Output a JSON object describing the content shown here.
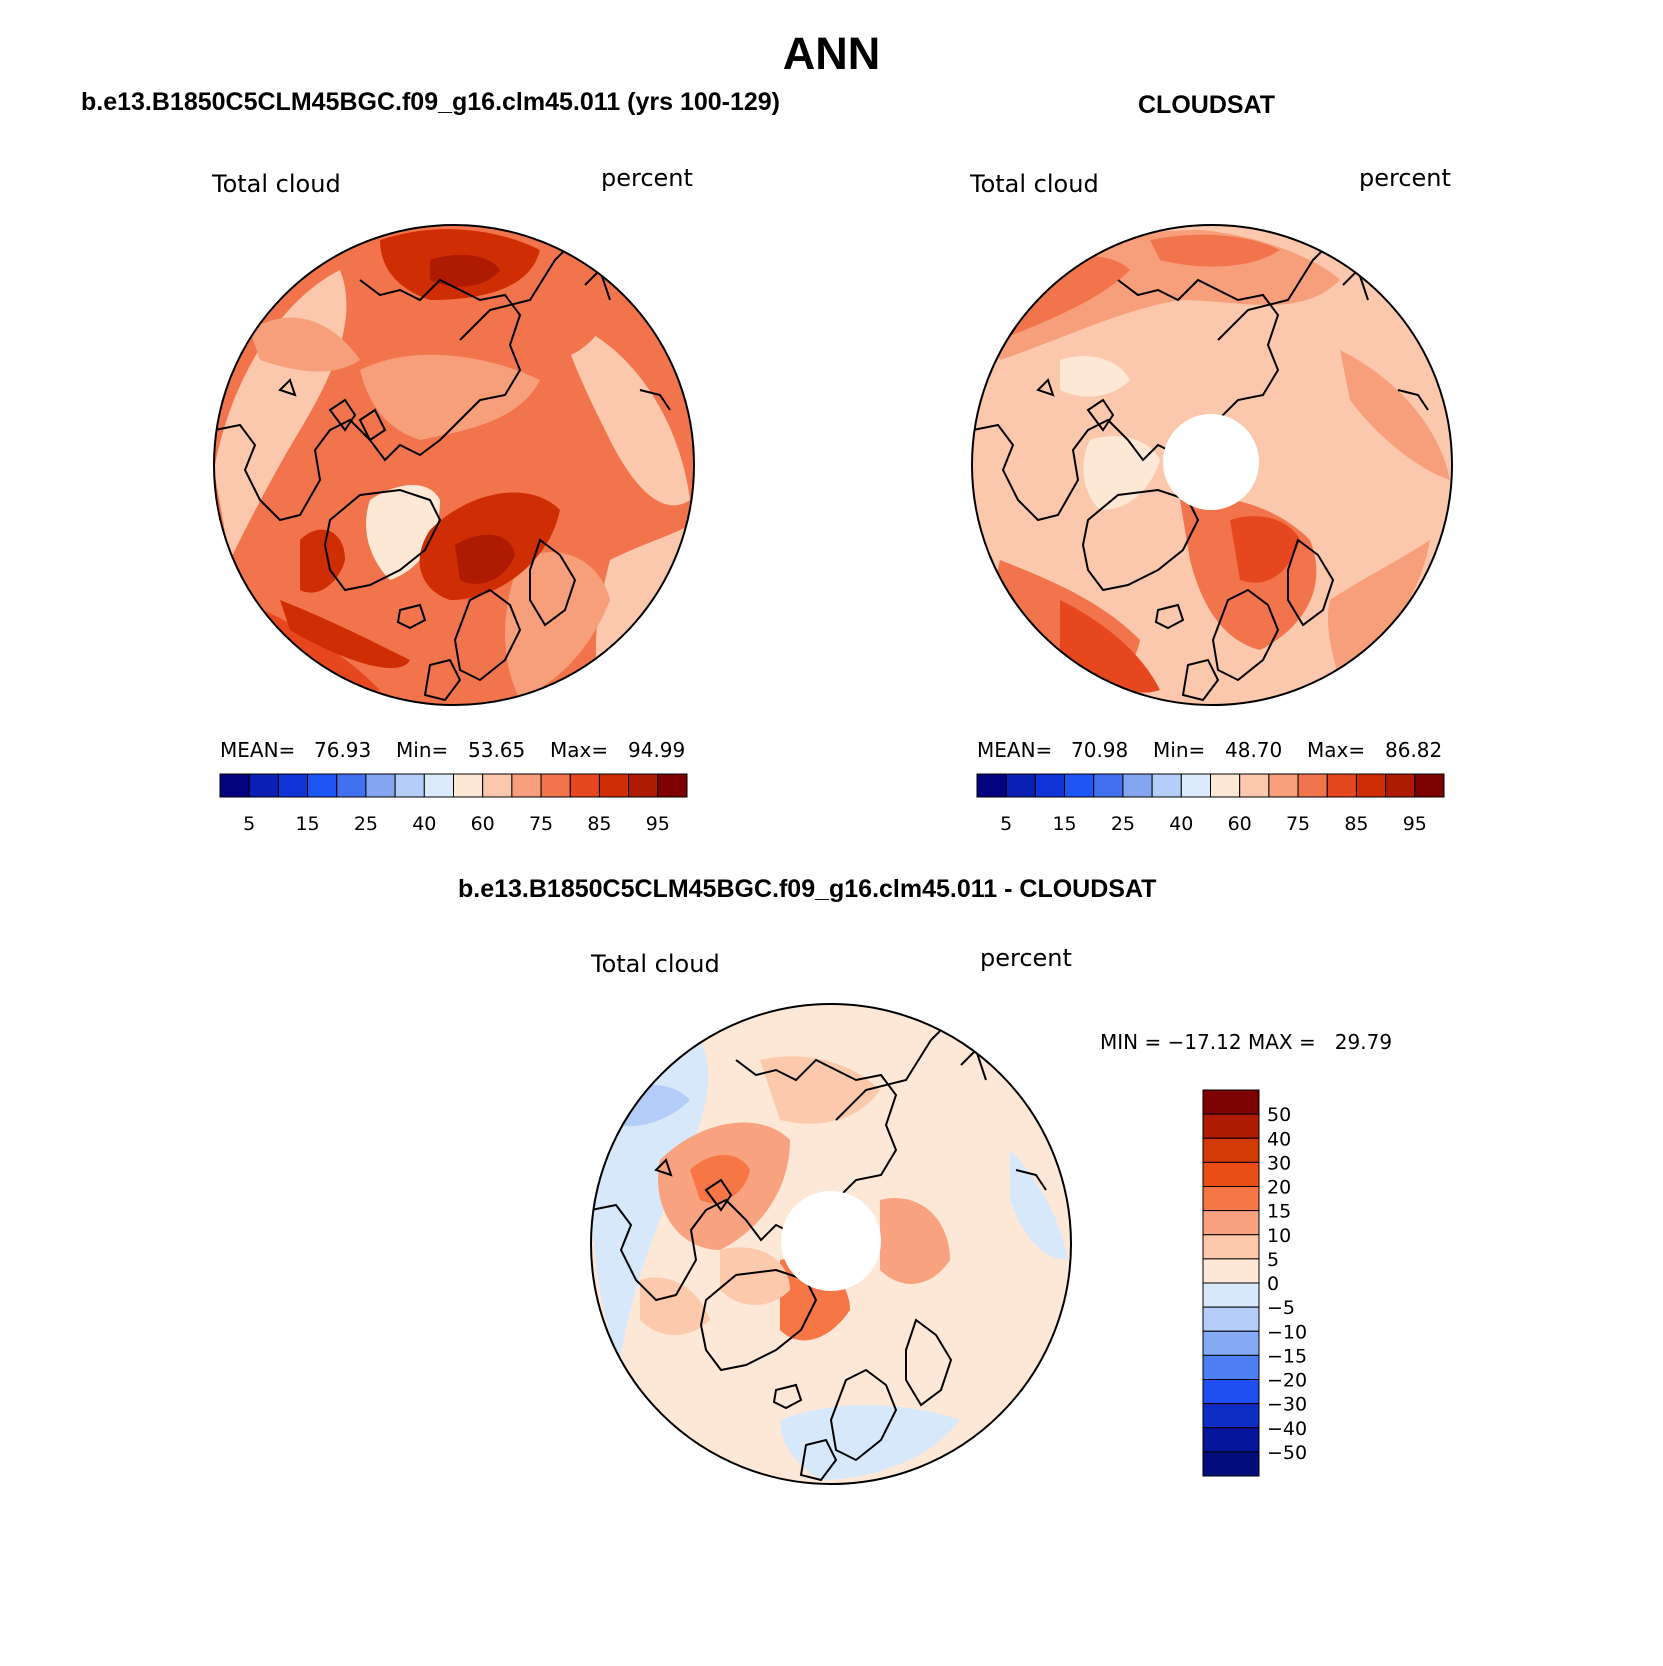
{
  "figure": {
    "title": "ANN"
  },
  "panels": [
    {
      "title": "b.e13.B1850C5CLM45BGC.f09_g16.clm45.011 (yrs 100-129)",
      "left_label": "Total cloud",
      "right_label": "percent",
      "stats": {
        "mean_label": "MEAN=",
        "mean": "76.93",
        "min_label": "Min=",
        "min": "53.65",
        "max_label": "Max=",
        "max": "94.99"
      }
    },
    {
      "title": "CLOUDSAT",
      "left_label": "Total cloud",
      "right_label": "percent",
      "stats": {
        "mean_label": "MEAN=",
        "mean": "70.98",
        "min_label": "Min=",
        "min": "48.70",
        "max_label": "Max=",
        "max": "86.82"
      }
    },
    {
      "title": "b.e13.B1850C5CLM45BGC.f09_g16.clm45.011 - CLOUDSAT",
      "left_label": "Total cloud",
      "right_label": "percent",
      "stats": {
        "text": "MIN = −17.12 MAX =   29.79"
      }
    }
  ],
  "chart_data": [
    {
      "type": "heatmap",
      "projection": "north polar stereographic",
      "title": "b.e13.B1850C5CLM45BGC.f09_g16.clm45.011 (yrs 100-129)",
      "variable": "Total cloud",
      "units": "percent",
      "mean": 76.93,
      "min": 53.65,
      "max": 94.99,
      "colorbar": {
        "orientation": "horizontal",
        "levels": [
          5,
          10,
          15,
          20,
          25,
          30,
          40,
          50,
          60,
          70,
          75,
          80,
          85,
          90,
          95
        ],
        "tick_labels": [
          "5",
          "15",
          "25",
          "40",
          "60",
          "75",
          "85",
          "95"
        ],
        "colors": [
          "#03037f",
          "#0a1fb4",
          "#0f35d8",
          "#1e55f5",
          "#4170f0",
          "#84a6f1",
          "#b5cdf9",
          "#dcebfc",
          "#fde8d6",
          "#fbc8ae",
          "#f79e7a",
          "#f2744c",
          "#e6471f",
          "#cf2e04",
          "#ae1a02",
          "#7e0101"
        ]
      }
    },
    {
      "type": "heatmap",
      "projection": "north polar stereographic",
      "title": "CLOUDSAT",
      "variable": "Total cloud",
      "units": "percent",
      "mean": 70.98,
      "min": 48.7,
      "max": 86.82,
      "colorbar": {
        "orientation": "horizontal",
        "levels": [
          5,
          10,
          15,
          20,
          25,
          30,
          40,
          50,
          60,
          70,
          75,
          80,
          85,
          90,
          95
        ],
        "tick_labels": [
          "5",
          "15",
          "25",
          "40",
          "60",
          "75",
          "85",
          "95"
        ],
        "colors": [
          "#03037f",
          "#0a1fb4",
          "#0f35d8",
          "#1e55f5",
          "#4170f0",
          "#84a6f1",
          "#b5cdf9",
          "#dcebfc",
          "#fde8d6",
          "#fbc8ae",
          "#f79e7a",
          "#f2744c",
          "#e6471f",
          "#cf2e04",
          "#ae1a02",
          "#7e0101"
        ]
      }
    },
    {
      "type": "heatmap",
      "projection": "north polar stereographic",
      "title": "b.e13.B1850C5CLM45BGC.f09_g16.clm45.011 - CLOUDSAT",
      "variable": "Total cloud",
      "units": "percent",
      "min": -17.12,
      "max": 29.79,
      "colorbar": {
        "orientation": "vertical",
        "levels": [
          -50,
          -40,
          -30,
          -20,
          -15,
          -10,
          -5,
          0,
          5,
          10,
          15,
          20,
          30,
          40,
          50
        ],
        "tick_labels": [
          "50",
          "40",
          "30",
          "20",
          "15",
          "10",
          "5",
          "0",
          "−5",
          "−10",
          "−15",
          "−20",
          "−30",
          "−40",
          "−50"
        ],
        "colors": [
          "#7e0101",
          "#ae1a02",
          "#d43a05",
          "#ea4d16",
          "#f67745",
          "#f9a27f",
          "#fdc9ad",
          "#fde8d8",
          "#d8e8fb",
          "#b3cdf8",
          "#85a9f3",
          "#4e7ef3",
          "#1f4ef1",
          "#0d2dc4",
          "#06169c",
          "#030d7b"
        ]
      }
    }
  ]
}
